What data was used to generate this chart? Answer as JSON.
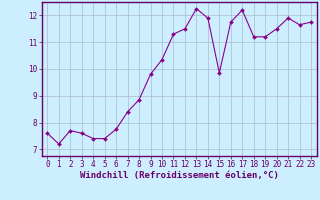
{
  "x": [
    0,
    1,
    2,
    3,
    4,
    5,
    6,
    7,
    8,
    9,
    10,
    11,
    12,
    13,
    14,
    15,
    16,
    17,
    18,
    19,
    20,
    21,
    22,
    23
  ],
  "y": [
    7.6,
    7.2,
    7.7,
    7.6,
    7.4,
    7.4,
    7.75,
    8.4,
    8.85,
    9.8,
    10.35,
    11.3,
    11.5,
    12.25,
    11.9,
    9.85,
    11.75,
    12.2,
    11.2,
    11.2,
    11.5,
    11.9,
    11.65,
    11.75
  ],
  "line_color": "#880088",
  "marker": "D",
  "marker_size": 2.0,
  "bg_color": "#cceeff",
  "grid_color": "#aabbcc",
  "xlabel": "Windchill (Refroidissement éolien,°C)",
  "ylabel": "",
  "xlim": [
    -0.5,
    23.5
  ],
  "ylim": [
    6.75,
    12.5
  ],
  "yticks": [
    7,
    8,
    9,
    10,
    11,
    12
  ],
  "xticks": [
    0,
    1,
    2,
    3,
    4,
    5,
    6,
    7,
    8,
    9,
    10,
    11,
    12,
    13,
    14,
    15,
    16,
    17,
    18,
    19,
    20,
    21,
    22,
    23
  ],
  "label_color": "#660066",
  "tick_color": "#660066",
  "spine_color": "#660066",
  "xlabel_fontsize": 6.5,
  "tick_fontsize": 5.5,
  "linewidth": 0.8
}
